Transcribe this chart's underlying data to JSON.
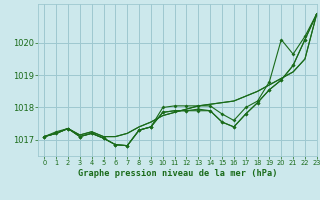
{
  "title": "Graphe pression niveau de la mer (hPa)",
  "bg_color": "#cce8ec",
  "grid_color": "#9ec8d0",
  "line_color": "#1a6b1a",
  "xlim": [
    -0.5,
    23
  ],
  "ylim": [
    1016.5,
    1021.2
  ],
  "yticks": [
    1017,
    1018,
    1019,
    1020
  ],
  "xticks": [
    0,
    1,
    2,
    3,
    4,
    5,
    6,
    7,
    8,
    9,
    10,
    11,
    12,
    13,
    14,
    15,
    16,
    17,
    18,
    19,
    20,
    21,
    22,
    23
  ],
  "series_smooth": [
    [
      1017.1,
      1017.2,
      1017.35,
      1017.15,
      1017.25,
      1017.1,
      1017.1,
      1017.2,
      1017.4,
      1017.55,
      1017.75,
      1017.85,
      1017.95,
      1018.05,
      1018.1,
      1018.15,
      1018.2,
      1018.35,
      1018.5,
      1018.7,
      1018.9,
      1019.1,
      1019.5,
      1020.9
    ],
    [
      1017.1,
      1017.2,
      1017.35,
      1017.15,
      1017.25,
      1017.1,
      1017.1,
      1017.2,
      1017.4,
      1017.55,
      1017.75,
      1017.85,
      1017.95,
      1018.05,
      1018.1,
      1018.15,
      1018.2,
      1018.35,
      1018.5,
      1018.7,
      1018.9,
      1019.1,
      1019.5,
      1020.9
    ]
  ],
  "series_markers": [
    [
      1017.1,
      1017.2,
      1017.35,
      1017.1,
      1017.2,
      1017.05,
      1016.85,
      1016.82,
      1017.3,
      1017.4,
      1018.0,
      1018.05,
      1018.05,
      1018.05,
      1018.05,
      1017.8,
      1017.6,
      1018.0,
      1018.2,
      1018.8,
      1020.1,
      1019.65,
      1020.2,
      1020.9
    ],
    [
      1017.1,
      1017.2,
      1017.35,
      1017.1,
      1017.2,
      1017.05,
      1016.85,
      1016.82,
      1017.3,
      1017.4,
      1017.85,
      1017.9,
      1017.9,
      1017.9,
      1017.9,
      1017.55,
      1017.4,
      1017.8,
      1018.15,
      1018.55,
      1018.85,
      1019.3,
      1020.1,
      1020.9
    ],
    [
      1017.1,
      1017.25,
      1017.35,
      1017.1,
      1017.2,
      1017.05,
      1016.85,
      1016.82,
      1017.3,
      1017.4,
      1017.85,
      1017.9,
      1017.9,
      1017.95,
      1017.9,
      1017.55,
      1017.4,
      1017.8,
      1018.15,
      1018.55,
      1018.85,
      1019.3,
      1020.1,
      1020.9
    ]
  ]
}
